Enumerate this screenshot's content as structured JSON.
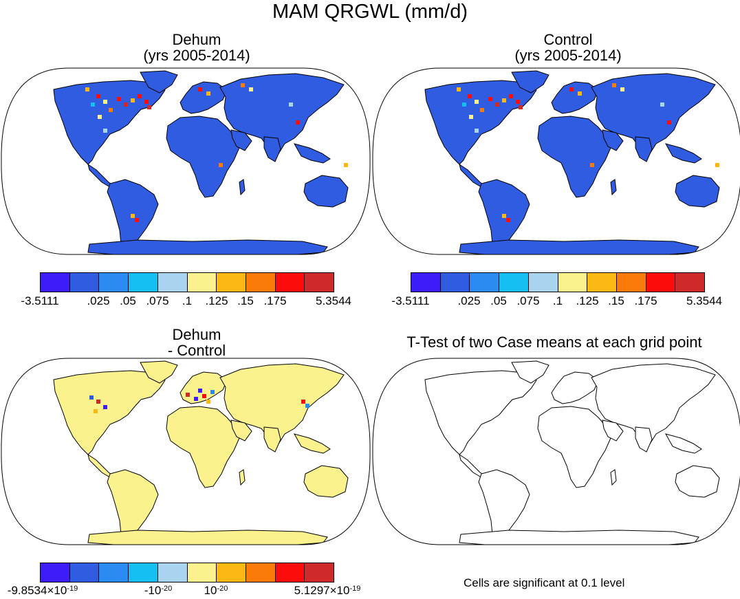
{
  "title": "MAM QRGWL (mm/d)",
  "panels": {
    "top_left": {
      "title_line1": "Dehum",
      "title_line2": "(yrs 2005-2014)"
    },
    "top_right": {
      "title_line1": "Control",
      "title_line2": "(yrs 2005-2014)"
    },
    "bottom_left": {
      "title_line1": "Dehum",
      "title_line2": "- Control"
    },
    "bottom_right": {
      "title": "T-Test of two Case means at each grid point",
      "note": "Cells are significant at 0.1 level"
    }
  },
  "colorbar": {
    "colors": [
      "#3c1cf7",
      "#2f5ce0",
      "#2a8cf2",
      "#16bff2",
      "#a8d4f0",
      "#fbf28e",
      "#fbb712",
      "#fa7a0a",
      "#fc0c0b",
      "#cf2a2a"
    ],
    "labels_main": [
      "-3.5111",
      ".025",
      ".05",
      ".075",
      ".1",
      ".125",
      ".15",
      ".175",
      "5.3544"
    ],
    "labels_diff": [
      "-9.8534×10",
      "-19",
      "-10",
      "-20",
      "10",
      "-20",
      "5.1297×10",
      "-19"
    ]
  },
  "map_colors": {
    "land_main": "#2f5ce0",
    "land_diff": "#fbf28e",
    "ocean": "#ffffff",
    "coast": "#000000"
  }
}
